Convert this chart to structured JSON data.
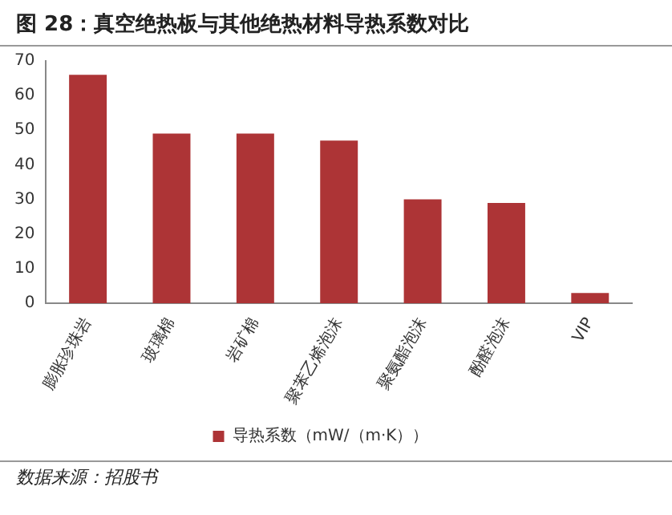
{
  "chart_data": {
    "type": "bar",
    "title": "图 28：真空绝热板与其他绝热材料导热系数对比",
    "categories": [
      "膨胀珍珠岩",
      "玻璃棉",
      "岩矿棉",
      "聚苯乙烯泡沫",
      "聚氨酯泡沫",
      "酚醛泡沫",
      "VIP"
    ],
    "series": [
      {
        "name": "导热系数（mW/（m·K））",
        "color": "#ad3436",
        "values": [
          66,
          49,
          49,
          47,
          30,
          29,
          3
        ]
      }
    ],
    "ylim": [
      0,
      70
    ],
    "yticks": [
      0,
      10,
      20,
      30,
      40,
      50,
      60,
      70
    ],
    "grid": false,
    "legend": "bottom",
    "annotations": [
      "数据来源：招股书"
    ]
  }
}
